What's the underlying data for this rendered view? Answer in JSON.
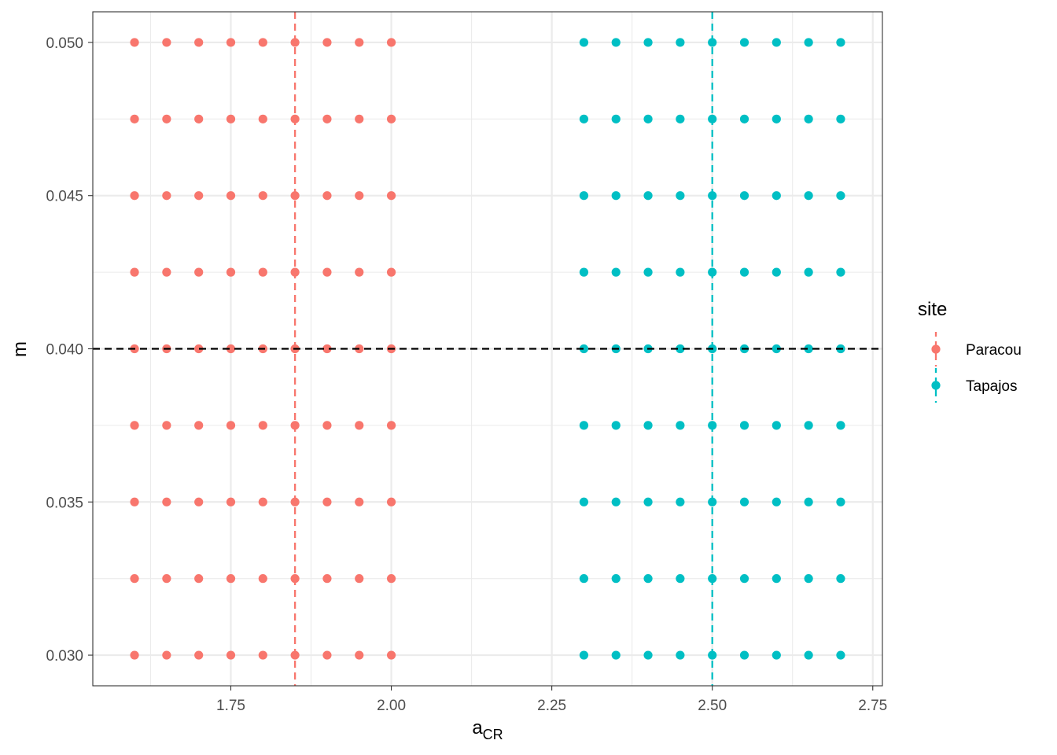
{
  "chart_data": {
    "type": "scatter",
    "title": "",
    "xlabel": {
      "main": "a",
      "sub": "CR"
    },
    "ylabel": "m",
    "xlim": [
      1.535,
      2.765
    ],
    "ylim": [
      0.029,
      0.051
    ],
    "x_ticks": [
      1.75,
      2.0,
      2.25,
      2.5,
      2.75
    ],
    "x_tick_labels": [
      "1.75",
      "2.00",
      "2.25",
      "2.50",
      "2.75"
    ],
    "y_ticks": [
      0.03,
      0.035,
      0.04,
      0.045,
      0.05
    ],
    "y_tick_labels": [
      "0.030",
      "0.035",
      "0.040",
      "0.045",
      "0.050"
    ],
    "grid": true,
    "legend": {
      "title": "site",
      "position": "right"
    },
    "series": [
      {
        "name": "Paracou",
        "color": "#F8766D",
        "x": [
          1.6,
          1.65,
          1.7,
          1.75,
          1.8,
          1.85,
          1.9,
          1.95,
          2.0
        ],
        "y": [
          0.03,
          0.0325,
          0.035,
          0.0375,
          0.04,
          0.0425,
          0.045,
          0.0475,
          0.05
        ],
        "vline": 1.85
      },
      {
        "name": "Tapajos",
        "color": "#00BFC4",
        "x": [
          2.3,
          2.35,
          2.4,
          2.45,
          2.5,
          2.55,
          2.6,
          2.65,
          2.7
        ],
        "y": [
          0.03,
          0.0325,
          0.035,
          0.0375,
          0.04,
          0.0425,
          0.045,
          0.0475,
          0.05
        ],
        "vline": 2.5
      }
    ],
    "hline": {
      "y": 0.04,
      "color": "#000000"
    }
  }
}
